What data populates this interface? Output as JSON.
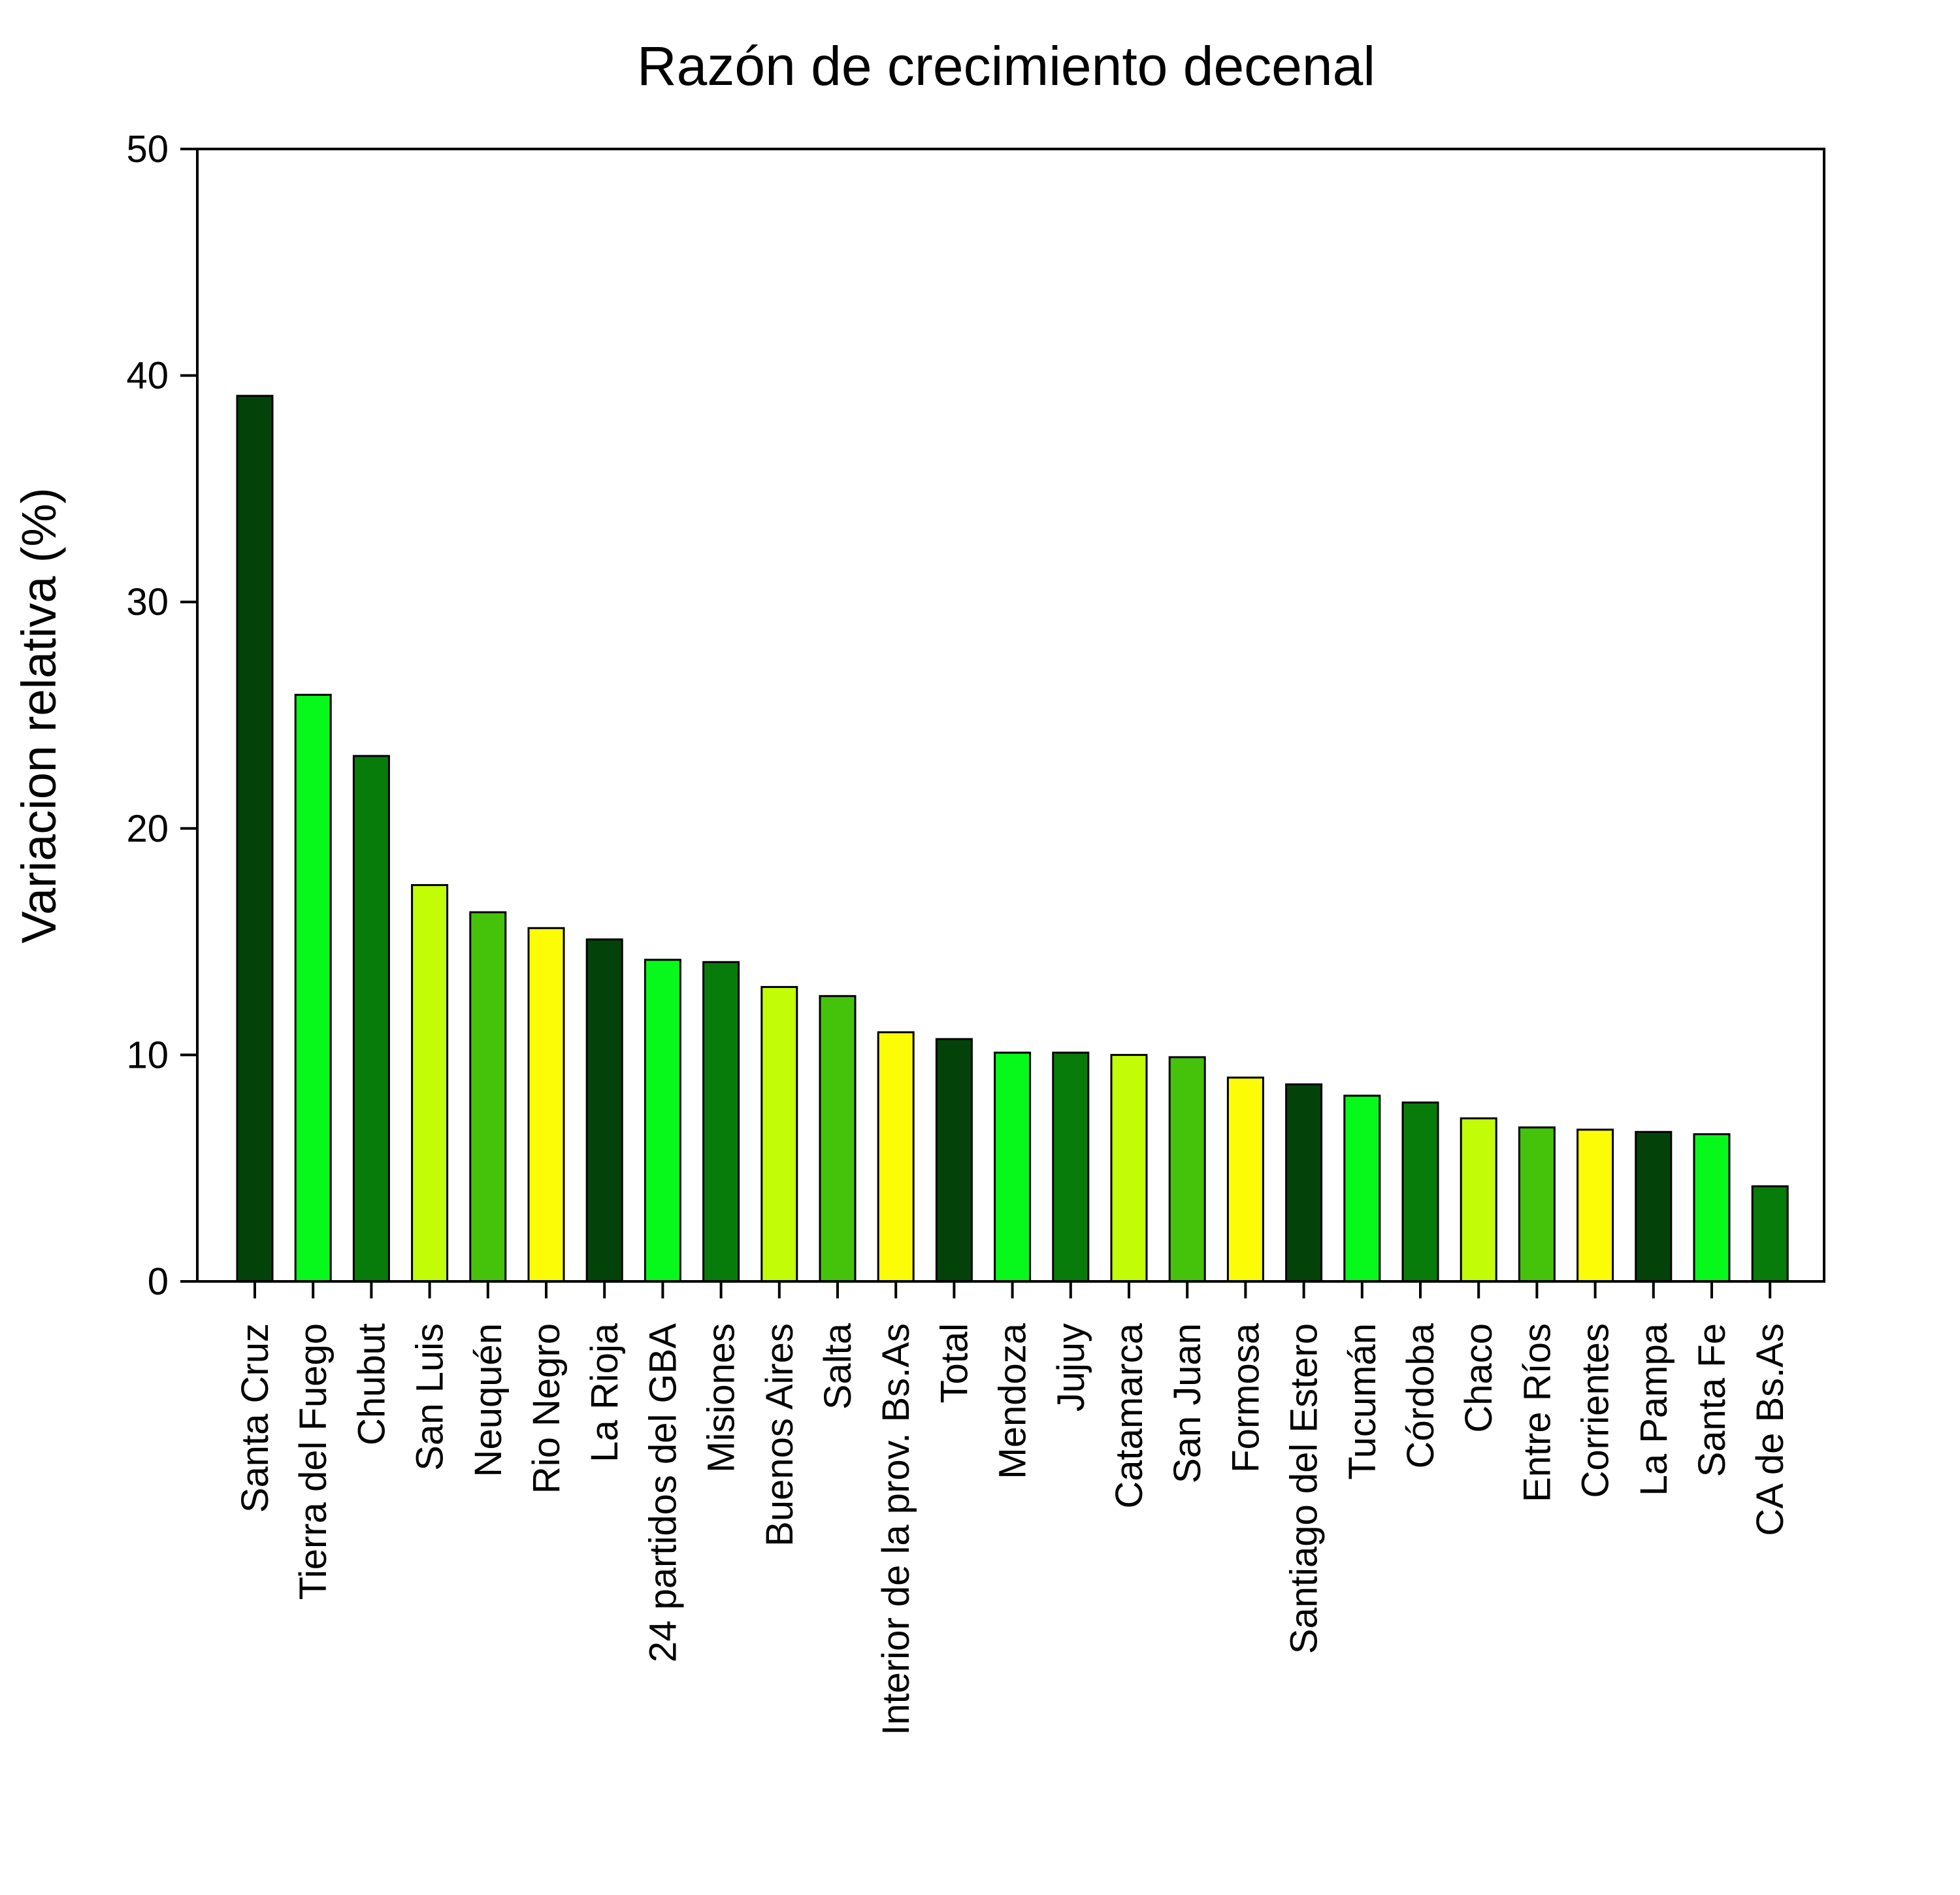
{
  "chart_data": {
    "type": "bar",
    "title": "Razón de crecimiento decenal",
    "xlabel": "",
    "ylabel": "Variacion relativa (%)",
    "ylim": [
      0,
      50
    ],
    "yticks": [
      "0",
      "10",
      "20",
      "30",
      "40",
      "50"
    ],
    "grid": false,
    "categories": [
      "Santa Cruz",
      "Tierra del Fuego",
      "Chubut",
      "San Luis",
      "Neuquén",
      "Rio Negro",
      "La Rioja",
      "24 partidos del GBA",
      "Misiones",
      "Buenos Aires",
      "Salta",
      "Interior de la prov. Bs.As",
      "Total",
      "Mendoza",
      "Jujuy",
      "Catamarca",
      "San Juan",
      "Formosa",
      "Santiago del Estero",
      "Tucumán",
      "Córdoba",
      "Chaco",
      "Entre Ríos",
      "Corrientes",
      "La Pampa",
      "Santa Fe",
      "CA de Bs.As"
    ],
    "values": [
      39.1,
      25.9,
      23.2,
      17.5,
      16.3,
      15.6,
      15.1,
      14.2,
      14.1,
      13.0,
      12.6,
      11.0,
      10.7,
      10.1,
      10.1,
      10.0,
      9.9,
      9.0,
      8.7,
      8.2,
      7.9,
      7.2,
      6.8,
      6.7,
      6.6,
      6.5,
      4.2
    ],
    "colors": [
      "#034309",
      "#07f91b",
      "#087c0b",
      "#c2fc07",
      "#45c20a",
      "#fcfc07",
      "#034309",
      "#07f91b",
      "#087c0b",
      "#c2fc07",
      "#45c20a",
      "#fcfc07",
      "#034309",
      "#07f91b",
      "#087c0b",
      "#c2fc07",
      "#45c20a",
      "#fcfc07",
      "#034309",
      "#07f91b",
      "#087c0b",
      "#c2fc07",
      "#45c20a",
      "#fcfc07",
      "#034309",
      "#07f91b",
      "#087c0b"
    ]
  }
}
